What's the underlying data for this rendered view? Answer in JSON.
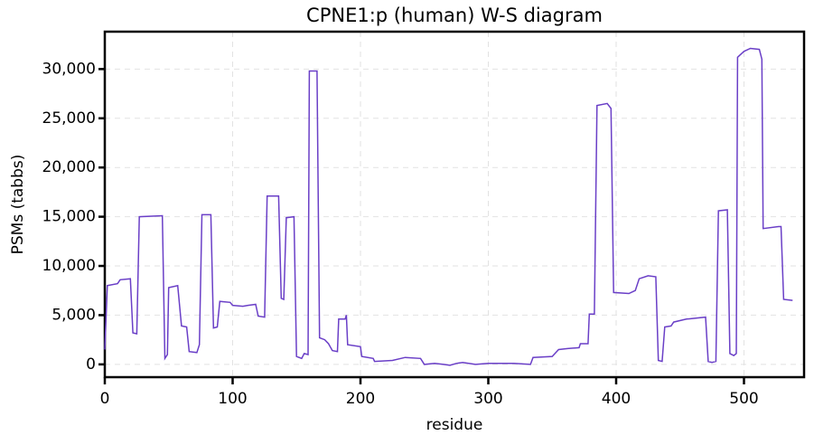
{
  "chart_data": {
    "type": "line",
    "title": "CPNE1:p (human) W-S diagram",
    "x_label": "residue",
    "y_label": "PSMs (tabbs)",
    "xlim": [
      0,
      547
    ],
    "xticks": [
      0,
      100,
      200,
      300,
      400,
      500
    ],
    "ylim": [
      -1300,
      33800
    ],
    "yticks": [
      0,
      {
        "value": 5000,
        "label": "5,000"
      },
      {
        "value": 10000,
        "label": "10,000"
      },
      {
        "value": 15000,
        "label": "15,000"
      },
      {
        "value": 20000,
        "label": "20,000"
      },
      {
        "value": 25000,
        "label": "25,000"
      },
      {
        "value": 30000,
        "label": "30,000"
      }
    ],
    "grid": true,
    "x": [
      0,
      2,
      10,
      12,
      20,
      22,
      25,
      27,
      45,
      47,
      49,
      50,
      57,
      60,
      64,
      66,
      72,
      74,
      76,
      83,
      85,
      88,
      90,
      98,
      100,
      108,
      112,
      118,
      120,
      125,
      127,
      136,
      138,
      140,
      142,
      148,
      150,
      154,
      156,
      159,
      160,
      166,
      168,
      172,
      175,
      178,
      182,
      183,
      188,
      189,
      190,
      200,
      201,
      210,
      211,
      225,
      235,
      247,
      250,
      258,
      265,
      270,
      275,
      280,
      290,
      300,
      320,
      333,
      335,
      350,
      355,
      362,
      371,
      372,
      378,
      379,
      383,
      385,
      393,
      396,
      398,
      410,
      415,
      418,
      425,
      431,
      433,
      436,
      438,
      443,
      445,
      455,
      470,
      472,
      475,
      478,
      480,
      487,
      489,
      492,
      494,
      495,
      500,
      505,
      512,
      514,
      515,
      527,
      529,
      531,
      538
    ],
    "series": [
      {
        "name": "PSMs",
        "color": "#6a3fc7",
        "values": [
          1500,
          8000,
          8200,
          8600,
          8700,
          3200,
          3100,
          15000,
          15100,
          600,
          1000,
          7800,
          8000,
          3900,
          3800,
          1300,
          1200,
          2000,
          15200,
          15200,
          3700,
          3800,
          6400,
          6300,
          6000,
          5900,
          6000,
          6100,
          4900,
          4800,
          17100,
          17100,
          6700,
          6600,
          14900,
          15000,
          800,
          600,
          1100,
          1000,
          29800,
          29800,
          2700,
          2500,
          2100,
          1400,
          1300,
          4600,
          4600,
          5000,
          2000,
          1800,
          800,
          600,
          300,
          400,
          700,
          600,
          0,
          100,
          0,
          -100,
          100,
          200,
          0,
          100,
          100,
          0,
          700,
          800,
          1500,
          1600,
          1700,
          2100,
          2100,
          5100,
          5100,
          26300,
          26500,
          26000,
          7300,
          7200,
          7500,
          8700,
          9000,
          8900,
          400,
          300,
          3800,
          3900,
          4300,
          4600,
          4800,
          300,
          200,
          300,
          15600,
          15700,
          1100,
          900,
          1100,
          31200,
          31800,
          32100,
          32000,
          31000,
          13800,
          14000,
          14000,
          6600,
          6500
        ]
      }
    ]
  }
}
